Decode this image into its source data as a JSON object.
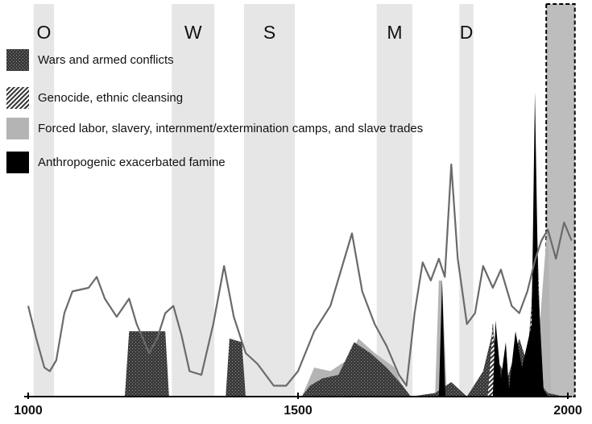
{
  "chart_data": {
    "type": "area-line",
    "xlim": [
      1000,
      2000
    ],
    "xticks": [
      1000,
      1500,
      2000
    ],
    "ylim": [
      0,
      100
    ],
    "bands": [
      {
        "label": "O",
        "start": 1010,
        "end": 1048
      },
      {
        "label": "W",
        "start": 1266,
        "end": 1345
      },
      {
        "label": "S",
        "start": 1400,
        "end": 1494
      },
      {
        "label": "M",
        "start": 1646,
        "end": 1712
      },
      {
        "label": "D",
        "start": 1799,
        "end": 1825
      }
    ],
    "highlight": [
      1960,
      2013
    ],
    "line": {
      "color": "#6a6a6a",
      "x": [
        1000,
        1015,
        1030,
        1040,
        1052,
        1067,
        1082,
        1112,
        1127,
        1142,
        1164,
        1187,
        1201,
        1224,
        1239,
        1254,
        1269,
        1284,
        1299,
        1321,
        1343,
        1363,
        1381,
        1403,
        1425,
        1455,
        1478,
        1500,
        1530,
        1560,
        1582,
        1600,
        1619,
        1642,
        1664,
        1687,
        1701,
        1716,
        1731,
        1746,
        1761,
        1772,
        1784,
        1796,
        1813,
        1828,
        1843,
        1861,
        1876,
        1896,
        1910,
        1925,
        1940,
        1951,
        1963,
        1978,
        1993,
        2007
      ],
      "values": [
        25,
        16,
        8,
        7,
        10,
        23,
        29,
        30,
        33,
        27,
        22,
        27,
        20,
        12,
        16,
        23,
        25,
        17,
        7,
        6,
        20,
        36,
        22,
        12,
        9,
        3,
        3,
        7,
        18,
        25,
        36,
        45,
        29,
        20,
        14,
        6,
        3,
        23,
        37,
        32,
        38,
        33,
        64,
        38,
        20,
        23,
        36,
        30,
        35,
        25,
        23,
        29,
        38,
        43,
        46,
        38,
        48,
        43
      ]
    },
    "series": [
      {
        "name": "Forced labor, slavery, internment/extermination camps, and slave trades",
        "color": "#b4b4b4",
        "pattern": null,
        "x": [
          1507,
          1530,
          1560,
          1590,
          1612,
          1642,
          1679,
          1701,
          1754,
          1761,
          1767,
          1776,
          1933,
          1948,
          1963,
          1969
        ],
        "values": [
          0,
          8,
          7,
          10,
          16,
          12,
          8,
          0,
          0,
          32,
          32,
          0,
          0,
          20,
          49,
          0
        ]
      },
      {
        "name": "Wars and armed conflicts",
        "color": "#3a3a3a",
        "pattern": "dots",
        "x": [
          1082,
          1179,
          1187,
          1254,
          1261,
          1366,
          1373,
          1396,
          1403,
          1507,
          1522,
          1545,
          1575,
          1604,
          1634,
          1664,
          1694,
          1709,
          1754,
          1784,
          1813,
          1843,
          1861,
          1873,
          1888,
          1910,
          1925,
          1940,
          1963,
          1993
        ],
        "values": [
          0,
          0,
          18,
          18,
          0,
          0,
          16,
          15,
          0,
          0,
          3,
          5,
          6,
          15,
          12,
          8,
          3,
          0,
          1,
          4,
          0,
          7,
          18,
          9,
          5,
          16,
          9,
          5,
          1,
          0
        ]
      },
      {
        "name": "Genocide, ethnic cleansing",
        "color": "#333333",
        "pattern": "hatch",
        "x": [
          1851,
          1861,
          1870,
          1918,
          1925,
          1933,
          1940,
          1948,
          1955
        ],
        "values": [
          0,
          20,
          0,
          0,
          10,
          25,
          58,
          20,
          0
        ]
      },
      {
        "name": "Anthropogenic exacerbated famine",
        "color": "#000000",
        "pattern": null,
        "x": [
          1761,
          1767,
          1773,
          1861,
          1866,
          1876,
          1885,
          1891,
          1903,
          1915,
          1933,
          1939,
          1945,
          1955,
          1963
        ],
        "values": [
          0,
          32,
          0,
          0,
          21,
          5,
          15,
          2,
          18,
          8,
          20,
          84,
          30,
          2,
          0
        ]
      }
    ]
  }
}
